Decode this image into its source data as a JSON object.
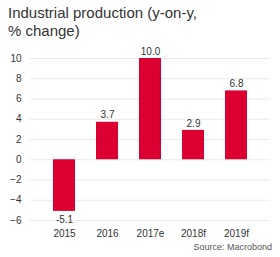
{
  "chart_data": {
    "type": "bar",
    "title": "Industrial production (y-on-y, % change)",
    "categories": [
      "2015",
      "2016",
      "2017e",
      "2018f",
      "2019f"
    ],
    "values": [
      -5.1,
      3.7,
      10.0,
      2.9,
      6.8
    ],
    "value_labels": [
      "-5.1",
      "3.7",
      "10.0",
      "2.9",
      "6.8"
    ],
    "color": "#dc0032",
    "ylim": [
      -6,
      10
    ],
    "yticks": [
      -6,
      -4,
      -2,
      0,
      2,
      4,
      6,
      8,
      10
    ],
    "grid": true,
    "data_labels": true,
    "caption": "Source: Macrobond"
  }
}
